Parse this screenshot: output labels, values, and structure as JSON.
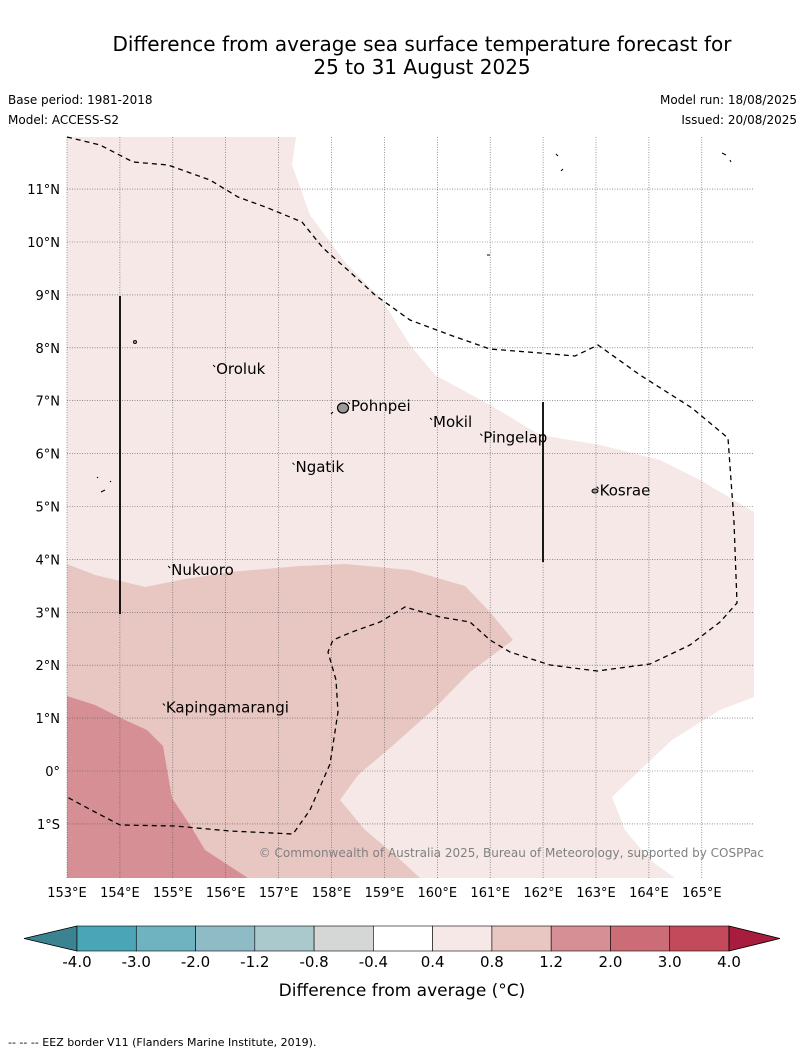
{
  "title_line1": "Difference from average sea surface temperature forecast for",
  "title_line2": "25 to 31 August 2025",
  "meta": {
    "base_period": "Base period: 1981-2018",
    "model": "Model: ACCESS-S2",
    "model_run": "Model run: 18/08/2025",
    "issued": "Issued: 20/08/2025"
  },
  "copyright": "© Commonwealth of Australia 2025, Bureau of Meteorology, supported by COSPPac",
  "lon_labels": [
    "153°E",
    "154°E",
    "155°E",
    "156°E",
    "157°E",
    "158°E",
    "159°E",
    "160°E",
    "161°E",
    "162°E",
    "163°E",
    "164°E",
    "165°E"
  ],
  "lat_labels": [
    "11°N",
    "10°N",
    "9°N",
    "8°N",
    "7°N",
    "6°N",
    "5°N",
    "4°N",
    "3°N",
    "2°N",
    "1°N",
    "0°",
    "1°S"
  ],
  "places": [
    {
      "name": "Oroluk",
      "lon": 155.8,
      "lat": 7.6
    },
    {
      "name": "Pohnpei",
      "lon": 158.35,
      "lat": 6.9
    },
    {
      "name": "Mokil",
      "lon": 159.9,
      "lat": 6.6
    },
    {
      "name": "Pingelap",
      "lon": 160.85,
      "lat": 6.3
    },
    {
      "name": "Ngatik",
      "lon": 157.3,
      "lat": 5.75
    },
    {
      "name": "Kosrae",
      "lon": 163.05,
      "lat": 5.3
    },
    {
      "name": "Nukuoro",
      "lon": 154.95,
      "lat": 3.8
    },
    {
      "name": "Kapingamarangi",
      "lon": 154.85,
      "lat": 1.2
    }
  ],
  "colorbar": {
    "labels": [
      "-4.0",
      "-3.0",
      "-2.0",
      "-1.2",
      "-0.8",
      "-0.4",
      "0.4",
      "0.8",
      "1.2",
      "2.0",
      "3.0",
      "4.0"
    ],
    "colors": [
      "#3b8391",
      "#4aa6b6",
      "#6fb3c1",
      "#8fbbc6",
      "#aac9cc",
      "#d4d7d6",
      "#ffffff",
      "#f5e8e7",
      "#e8c6c2",
      "#d68f95",
      "#cc6c76",
      "#c24a5b",
      "#a81c3d"
    ],
    "title": "Difference from average (°C)"
  },
  "footer": "-- --  -- EEZ border V11 (Flanders Marine Institute, 2019)."
}
